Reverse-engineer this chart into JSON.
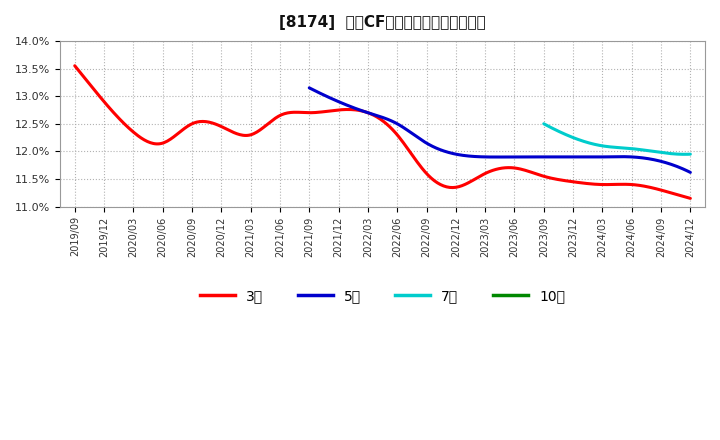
{
  "title": "[8174]  営業CFマージンの平均値の推移",
  "title_fontsize": 11,
  "background_color": "#ffffff",
  "plot_bg_color": "#ffffff",
  "grid_color": "#aaaaaa",
  "ylim": [
    0.11,
    0.14
  ],
  "yticks": [
    0.11,
    0.115,
    0.12,
    0.125,
    0.13,
    0.135,
    0.14
  ],
  "ytick_labels": [
    "11.0%",
    "11.5%",
    "12.0%",
    "12.5%",
    "13.0%",
    "13.5%",
    "14.0%"
  ],
  "xtick_labels": [
    "2019/09",
    "2019/12",
    "2020/03",
    "2020/06",
    "2020/09",
    "2020/12",
    "2021/03",
    "2021/06",
    "2021/09",
    "2021/12",
    "2022/03",
    "2022/06",
    "2022/09",
    "2022/12",
    "2023/03",
    "2023/06",
    "2023/09",
    "2023/12",
    "2024/03",
    "2024/06",
    "2024/09",
    "2024/12"
  ],
  "series": {
    "3年": {
      "color": "#ff0000",
      "x": [
        0,
        1,
        2,
        3,
        4,
        5,
        6,
        7,
        8,
        9,
        10,
        11,
        12,
        13,
        14,
        15,
        16,
        17,
        18,
        19,
        20,
        21
      ],
      "y": [
        0.1355,
        0.129,
        0.1235,
        0.1215,
        0.125,
        0.1245,
        0.123,
        0.1265,
        0.127,
        0.1275,
        0.127,
        0.123,
        0.116,
        0.1135,
        0.116,
        0.117,
        0.1155,
        0.1145,
        0.114,
        0.114,
        0.113,
        0.1115
      ]
    },
    "5年": {
      "color": "#0000cc",
      "x": [
        8,
        9,
        10,
        11,
        12,
        13,
        14,
        15,
        16,
        17,
        18,
        19,
        20,
        21
      ],
      "y": [
        0.1315,
        0.129,
        0.127,
        0.125,
        0.1215,
        0.1195,
        0.119,
        0.119,
        0.119,
        0.119,
        0.119,
        0.119,
        0.1182,
        0.1162
      ]
    },
    "7年": {
      "color": "#00cccc",
      "x": [
        16,
        17,
        18,
        19,
        20,
        21
      ],
      "y": [
        0.125,
        0.1225,
        0.121,
        0.1205,
        0.1198,
        0.1195
      ]
    },
    "10年": {
      "color": "#008800",
      "x": [],
      "y": []
    }
  },
  "legend_entries": [
    "3年",
    "5年",
    "7年",
    "10年"
  ],
  "legend_colors": [
    "#ff0000",
    "#0000cc",
    "#00cccc",
    "#008800"
  ]
}
